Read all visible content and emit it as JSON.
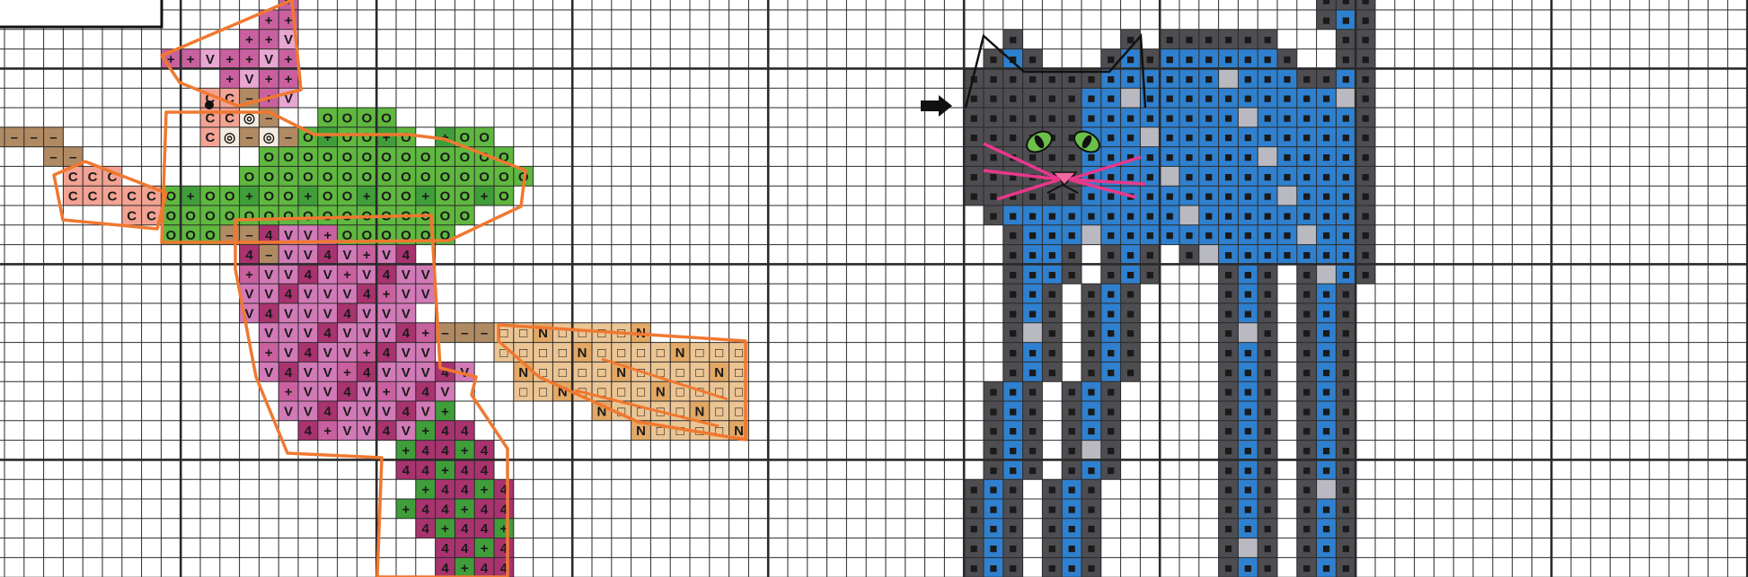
{
  "pattern": {
    "grid_color": "#2a2a2a",
    "outline_color": "#f07830",
    "regions": {
      "hat": {
        "color": "#c9609f",
        "symbol": "+"
      },
      "hat_light": {
        "color": "#e8a6d2",
        "symbol": "V"
      },
      "face": {
        "color": "#f2a393",
        "symbol": "C"
      },
      "hair": {
        "color": "#f4ece0",
        "symbol": "◎"
      },
      "broom_handle": {
        "color": "#b08a63",
        "symbol": "–"
      },
      "arm": {
        "color": "#f2a393",
        "symbol": "C"
      },
      "cape": {
        "color": "#5fb83f",
        "symbol": "O"
      },
      "dress": {
        "color": "#d27ab8",
        "symbol": "V"
      },
      "dress_dark": {
        "color": "#a8336f",
        "symbol": "4"
      },
      "legs": {
        "color": "#3f9e3a",
        "symbol": "+"
      },
      "bristles": {
        "color": "#ecc594",
        "symbol": "□"
      },
      "bristles_dark": {
        "color": "#e3a865",
        "symbol": "N"
      },
      "cat_dark": {
        "color": "#4d4d52",
        "symbol": "■"
      },
      "cat_blue": {
        "color": "#2f80cf",
        "symbol": "■"
      },
      "cat_light": {
        "color": "#b9b9c2",
        "symbol": ""
      },
      "cat_eye": {
        "color": "#6cc04a"
      },
      "cat_nose": {
        "color": "#f06aa0"
      },
      "cat_whisker": {
        "color": "#e8388a"
      }
    }
  }
}
